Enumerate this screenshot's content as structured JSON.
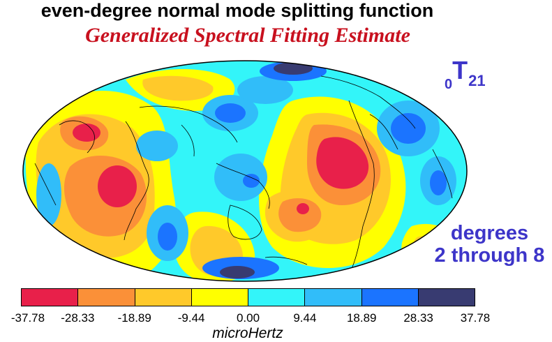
{
  "title": "even-degree normal mode splitting function",
  "subtitle": "Generalized Spectral Fitting Estimate",
  "mode_label": {
    "prefix": "0",
    "main": "T",
    "subscript": "21"
  },
  "degrees_label": {
    "line1": "degrees",
    "line2": "2 through 8"
  },
  "colorbar": {
    "colors": [
      "#e8204a",
      "#fb9038",
      "#ffc92a",
      "#ffff00",
      "#33f5f9",
      "#31bdf9",
      "#1b74ff",
      "#383b71"
    ],
    "ticks": [
      "-37.78",
      "-28.33",
      "-18.89",
      "-9.44",
      "0.00",
      "9.44",
      "18.89",
      "28.33",
      "37.78"
    ],
    "unit": "microHertz"
  },
  "map": {
    "projection": "Mollweide (Pacific-centered)",
    "background_color": "#33f5f9"
  }
}
